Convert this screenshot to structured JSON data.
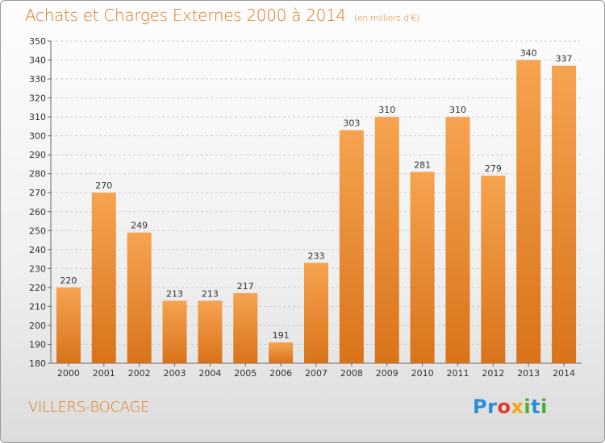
{
  "header": {
    "title": "Achats et Charges Externes 2000 à 2014",
    "subtitle": "(en milliers d'€)"
  },
  "footer": {
    "place": "VILLERS-BOCAGE",
    "logo_letters": [
      {
        "ch": "P",
        "color": "#2a8fd6"
      },
      {
        "ch": "r",
        "color": "#2a8fd6"
      },
      {
        "ch": "o",
        "color": "#e03a2a"
      },
      {
        "ch": "x",
        "color": "#f2a81d"
      },
      {
        "ch": "i",
        "color": "#4caf2a"
      },
      {
        "ch": "t",
        "color": "#2a8fd6"
      },
      {
        "ch": "i",
        "color": "#4caf2a"
      }
    ]
  },
  "colors": {
    "bar_light": "#f6a350",
    "bar_dark": "#d9731a",
    "accent": "#e07a1a"
  },
  "chart_data": {
    "type": "bar",
    "categories": [
      "2000",
      "2001",
      "2002",
      "2003",
      "2004",
      "2005",
      "2006",
      "2007",
      "2008",
      "2009",
      "2010",
      "2011",
      "2012",
      "2013",
      "2014"
    ],
    "values": [
      220,
      270,
      249,
      213,
      213,
      217,
      191,
      233,
      303,
      310,
      281,
      310,
      279,
      340,
      337
    ],
    "title": "Achats et Charges Externes 2000 à 2014",
    "subtitle": "(en milliers d'€)",
    "ylim": [
      180,
      350
    ],
    "yticks": [
      180,
      190,
      200,
      210,
      220,
      230,
      240,
      250,
      260,
      270,
      280,
      290,
      300,
      310,
      320,
      330,
      340,
      350
    ],
    "grid": "horizontal"
  }
}
